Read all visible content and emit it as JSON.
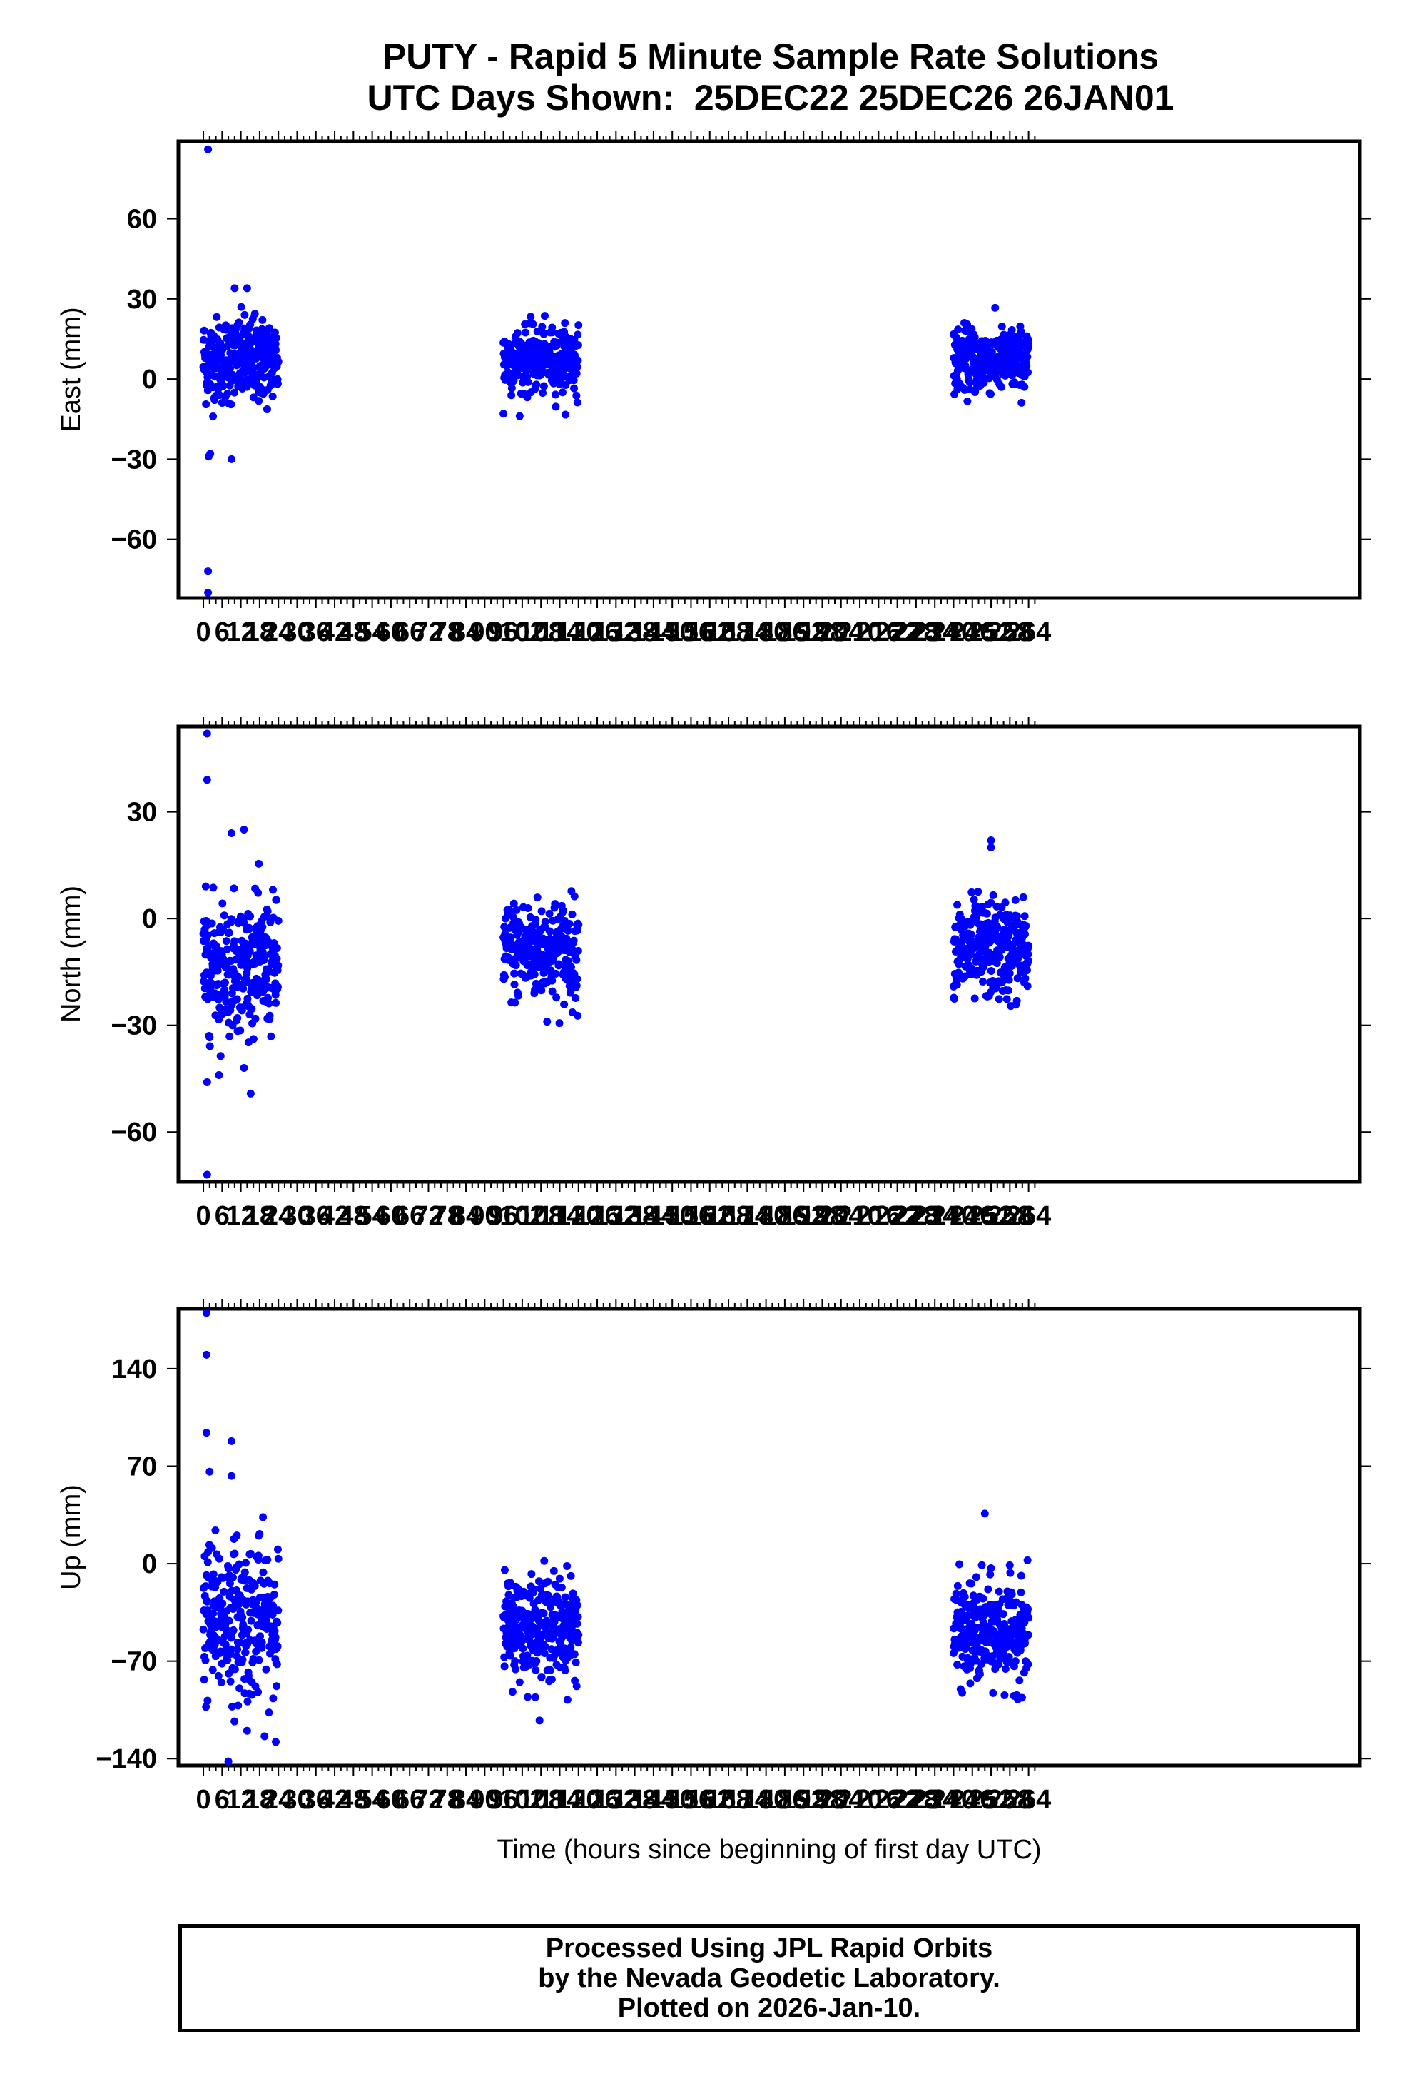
{
  "title": {
    "line1": "PUTY - Rapid 5 Minute Sample Rate Solutions",
    "line2": "UTC Days Shown:  25DEC22 25DEC26 26JAN01"
  },
  "footer": {
    "line1": "Processed Using JPL Rapid Orbits",
    "line2": "by the Nevada Geodetic Laboratory.",
    "line3": "Plotted on 2026-Jan-10."
  },
  "colors": {
    "points": "#0000ff",
    "frame": "#000000"
  },
  "chart_data": [
    {
      "type": "scatter",
      "ylabel": "East (mm)",
      "xlabel": "",
      "xlim": [
        -8,
        370
      ],
      "ylim": [
        -82,
        89
      ],
      "yticks": [
        -60,
        -30,
        0,
        30,
        60
      ],
      "xtick_labels": [
        "0",
        "6",
        "12",
        "18",
        "24",
        "30",
        "36",
        "42",
        "48",
        "54",
        "60",
        "66",
        "72",
        "78",
        "84",
        "90",
        "96",
        "102",
        "108",
        "114",
        "120",
        "126",
        "132",
        "138",
        "144",
        "150",
        "156",
        "162",
        "168",
        "174",
        "180",
        "186",
        "192",
        "198",
        "204",
        "210",
        "216",
        "222",
        "228",
        "234",
        "240",
        "246",
        "252",
        "258",
        "264"
      ],
      "series": [
        {
          "clusters": [
            {
              "t0": 0,
              "t1": 24,
              "mean": 7,
              "sd": 8
            },
            {
              "t0": 96,
              "t1": 120,
              "mean": 7,
              "sd": 6
            },
            {
              "t0": 240,
              "t1": 264,
              "mean": 7,
              "sd": 6
            }
          ],
          "outliers": [
            [
              1.5,
              86
            ],
            [
              1.5,
              -72
            ],
            [
              1.5,
              -80
            ],
            [
              1.7,
              -29
            ],
            [
              2.2,
              -28
            ],
            [
              9,
              -30
            ],
            [
              10,
              34
            ],
            [
              14,
              34
            ],
            [
              96,
              -13
            ]
          ]
        }
      ]
    },
    {
      "type": "scatter",
      "ylabel": "North (mm)",
      "xlabel": "",
      "xlim": [
        -8,
        370
      ],
      "ylim": [
        -74,
        54
      ],
      "yticks": [
        -60,
        -30,
        0,
        30
      ],
      "xtick_labels": [
        "0",
        "6",
        "12",
        "18",
        "24",
        "30",
        "36",
        "42",
        "48",
        "54",
        "60",
        "66",
        "72",
        "78",
        "84",
        "90",
        "96",
        "102",
        "108",
        "114",
        "120",
        "126",
        "132",
        "138",
        "144",
        "150",
        "156",
        "162",
        "168",
        "174",
        "180",
        "186",
        "192",
        "198",
        "204",
        "210",
        "216",
        "222",
        "228",
        "234",
        "240",
        "246",
        "252",
        "258",
        "264"
      ],
      "series": [
        {
          "clusters": [
            {
              "t0": 0,
              "t1": 24,
              "mean": -13,
              "sd": 9
            },
            {
              "t0": 96,
              "t1": 120,
              "mean": -9,
              "sd": 7
            },
            {
              "t0": 240,
              "t1": 264,
              "mean": -9,
              "sd": 7
            }
          ],
          "outliers": [
            [
              1.2,
              52
            ],
            [
              1.2,
              39
            ],
            [
              1.2,
              -46
            ],
            [
              1.2,
              -72
            ],
            [
              5,
              -44
            ],
            [
              9,
              24
            ],
            [
              13,
              25
            ],
            [
              13,
              -42
            ],
            [
              252,
              22
            ],
            [
              252,
              20
            ]
          ]
        }
      ]
    },
    {
      "type": "scatter",
      "ylabel": "Up (mm)",
      "xlabel": "Time (hours since beginning of first day UTC)",
      "xlim": [
        -8,
        370
      ],
      "ylim": [
        -145,
        183
      ],
      "yticks": [
        -140,
        -70,
        0,
        70,
        140
      ],
      "xtick_labels": [
        "0",
        "6",
        "12",
        "18",
        "24",
        "30",
        "36",
        "42",
        "48",
        "54",
        "60",
        "66",
        "72",
        "78",
        "84",
        "90",
        "96",
        "102",
        "108",
        "114",
        "120",
        "126",
        "132",
        "138",
        "144",
        "150",
        "156",
        "162",
        "168",
        "174",
        "180",
        "186",
        "192",
        "198",
        "204",
        "210",
        "216",
        "222",
        "228",
        "234",
        "240",
        "246",
        "252",
        "258",
        "264"
      ],
      "series": [
        {
          "clusters": [
            {
              "t0": 0,
              "t1": 24,
              "mean": -40,
              "sd": 28
            },
            {
              "t0": 96,
              "t1": 120,
              "mean": -45,
              "sd": 18
            },
            {
              "t0": 240,
              "t1": 264,
              "mean": -50,
              "sd": 18
            }
          ],
          "outliers": [
            [
              1,
              180
            ],
            [
              1,
              150
            ],
            [
              1,
              94
            ],
            [
              2,
              66
            ],
            [
              9,
              88
            ],
            [
              9,
              63
            ],
            [
              8,
              -142
            ],
            [
              14,
              -120
            ],
            [
              250,
              36
            ]
          ]
        }
      ]
    }
  ]
}
